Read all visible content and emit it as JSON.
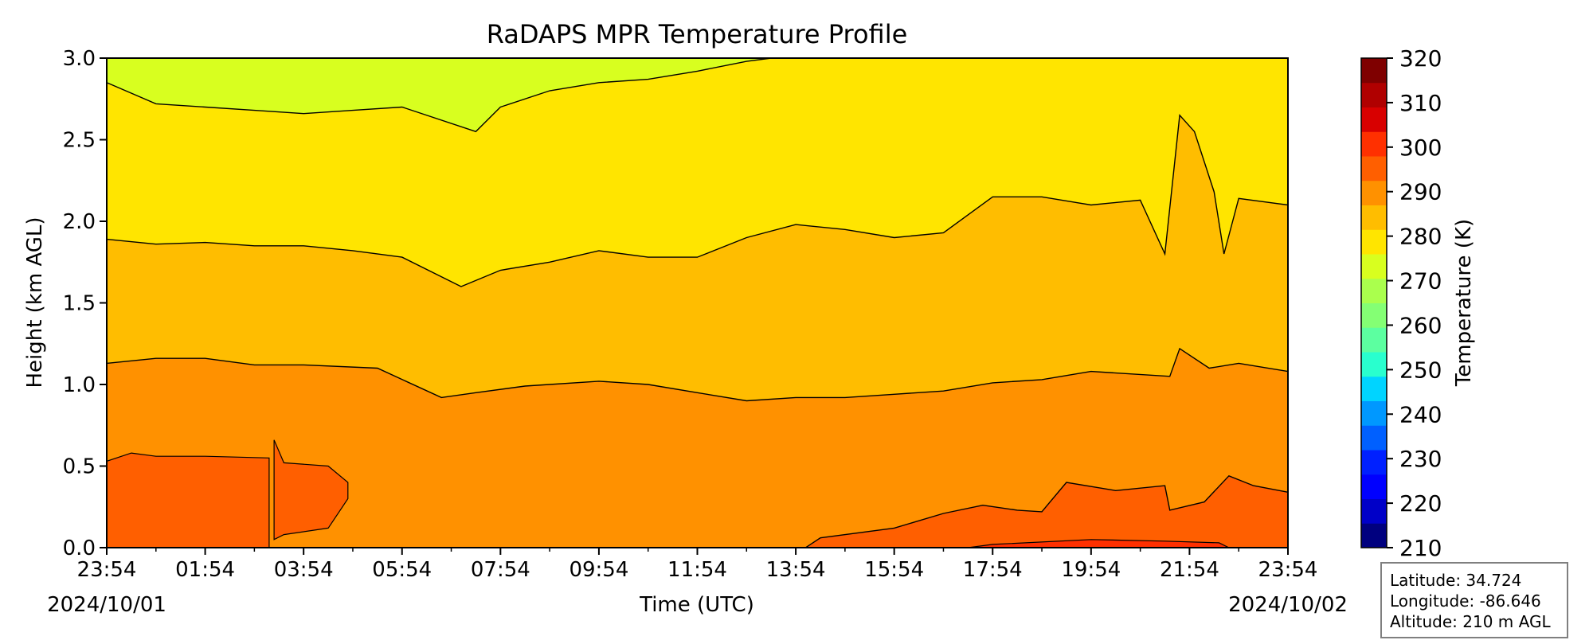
{
  "chart_data": {
    "type": "heatmap",
    "subtype": "filled-contour",
    "title": "RaDAPS MPR Temperature Profile",
    "xlabel": "Time (UTC)",
    "ylabel": "Height (km AGL)",
    "x_tick_labels": [
      "23:54",
      "01:54",
      "03:54",
      "05:54",
      "07:54",
      "09:54",
      "11:54",
      "13:54",
      "15:54",
      "17:54",
      "19:54",
      "21:54",
      "23:54"
    ],
    "x_start_date": "2024/10/01",
    "x_end_date": "2024/10/02",
    "xlim_hours": [
      0,
      24
    ],
    "ylim": [
      0,
      3.0
    ],
    "y_ticks": [
      0.0,
      0.5,
      1.0,
      1.5,
      2.0,
      2.5,
      3.0
    ],
    "y_tick_labels": [
      "0.0",
      "0.5",
      "1.0",
      "1.5",
      "2.0",
      "2.5",
      "3.0"
    ],
    "colorbar": {
      "label": "Temperature (K)",
      "min": 210,
      "max": 320,
      "step": 5,
      "tick_labels": [
        "210",
        "220",
        "230",
        "240",
        "250",
        "260",
        "270",
        "280",
        "290",
        "300",
        "310",
        "320"
      ],
      "colors": [
        "#00007f",
        "#0000c8",
        "#0000ff",
        "#0020ff",
        "#0060ff",
        "#0098ff",
        "#00d4ff",
        "#29ffce",
        "#5cffa0",
        "#84ff74",
        "#aaff4d",
        "#d8ff1f",
        "#ffe500",
        "#ffbd00",
        "#ff9100",
        "#ff5f00",
        "#ff3000",
        "#d80000",
        "#b00000",
        "#7f0000"
      ]
    },
    "contour_bands": [
      {
        "range": [
          275,
          280
        ],
        "color": "#d8ff1f"
      },
      {
        "range": [
          280,
          285
        ],
        "color": "#ffe500"
      },
      {
        "range": [
          285,
          290
        ],
        "color": "#ffbd00"
      },
      {
        "range": [
          290,
          295
        ],
        "color": "#ff9100"
      },
      {
        "range": [
          295,
          300
        ],
        "color": "#ff5f00"
      },
      {
        "range": [
          300,
          305
        ],
        "color": "#ff3000"
      }
    ],
    "isotherms": [
      {
        "temperature_K": 300,
        "points": [
          [
            14.2,
            0.0
          ],
          [
            14.5,
            0.06
          ],
          [
            16.0,
            0.12
          ],
          [
            17.0,
            0.21
          ],
          [
            17.8,
            0.26
          ],
          [
            18.5,
            0.23
          ],
          [
            19.0,
            0.22
          ],
          [
            19.5,
            0.4
          ],
          [
            20.5,
            0.35
          ],
          [
            21.5,
            0.38
          ],
          [
            21.6,
            0.23
          ],
          [
            22.3,
            0.28
          ],
          [
            22.8,
            0.44
          ],
          [
            23.3,
            0.38
          ],
          [
            24.0,
            0.34
          ]
        ]
      },
      {
        "temperature_K": 285,
        "points": [
          [
            0.0,
            1.13
          ],
          [
            1.0,
            1.16
          ],
          [
            2.0,
            1.16
          ],
          [
            3.0,
            1.12
          ],
          [
            4.0,
            1.12
          ],
          [
            5.5,
            1.1
          ],
          [
            6.8,
            0.92
          ],
          [
            7.5,
            0.95
          ],
          [
            8.5,
            0.99
          ],
          [
            10.0,
            1.02
          ],
          [
            11.0,
            1.0
          ],
          [
            12.0,
            0.95
          ],
          [
            13.0,
            0.9
          ],
          [
            14.0,
            0.92
          ],
          [
            15.0,
            0.92
          ],
          [
            16.0,
            0.94
          ],
          [
            17.0,
            0.96
          ],
          [
            18.0,
            1.01
          ],
          [
            19.0,
            1.03
          ],
          [
            20.0,
            1.08
          ],
          [
            21.6,
            1.05
          ],
          [
            21.8,
            1.22
          ],
          [
            22.4,
            1.1
          ],
          [
            23.0,
            1.13
          ],
          [
            24.0,
            1.08
          ]
        ]
      },
      {
        "temperature_K": 280,
        "points": [
          [
            0.0,
            1.89
          ],
          [
            1.0,
            1.86
          ],
          [
            2.0,
            1.87
          ],
          [
            3.0,
            1.85
          ],
          [
            4.0,
            1.85
          ],
          [
            5.0,
            1.82
          ],
          [
            6.0,
            1.78
          ],
          [
            7.2,
            1.6
          ],
          [
            8.0,
            1.7
          ],
          [
            9.0,
            1.75
          ],
          [
            10.0,
            1.82
          ],
          [
            11.0,
            1.78
          ],
          [
            12.0,
            1.78
          ],
          [
            13.0,
            1.9
          ],
          [
            14.0,
            1.98
          ],
          [
            15.0,
            1.95
          ],
          [
            16.0,
            1.9
          ],
          [
            17.0,
            1.93
          ],
          [
            18.0,
            2.15
          ],
          [
            19.0,
            2.15
          ],
          [
            20.0,
            2.1
          ],
          [
            21.0,
            2.13
          ],
          [
            21.5,
            1.8
          ],
          [
            21.8,
            2.65
          ],
          [
            22.1,
            2.55
          ],
          [
            22.5,
            2.18
          ],
          [
            22.7,
            1.8
          ],
          [
            23.0,
            2.14
          ],
          [
            24.0,
            2.1
          ]
        ]
      },
      {
        "temperature_K": 275,
        "points": [
          [
            0.0,
            2.85
          ],
          [
            1.0,
            2.72
          ],
          [
            2.0,
            2.7
          ],
          [
            3.0,
            2.68
          ],
          [
            4.0,
            2.66
          ],
          [
            5.0,
            2.68
          ],
          [
            6.0,
            2.7
          ],
          [
            7.5,
            2.55
          ],
          [
            8.0,
            2.7
          ],
          [
            9.0,
            2.8
          ],
          [
            10.0,
            2.85
          ],
          [
            11.0,
            2.87
          ],
          [
            12.0,
            2.92
          ],
          [
            13.0,
            2.98
          ],
          [
            13.5,
            3.0
          ]
        ]
      }
    ]
  },
  "station_info": {
    "latitude": "Latitude: 34.724",
    "longitude": "Longitude: -86.646",
    "altitude": "Altitude: 210 m AGL"
  }
}
